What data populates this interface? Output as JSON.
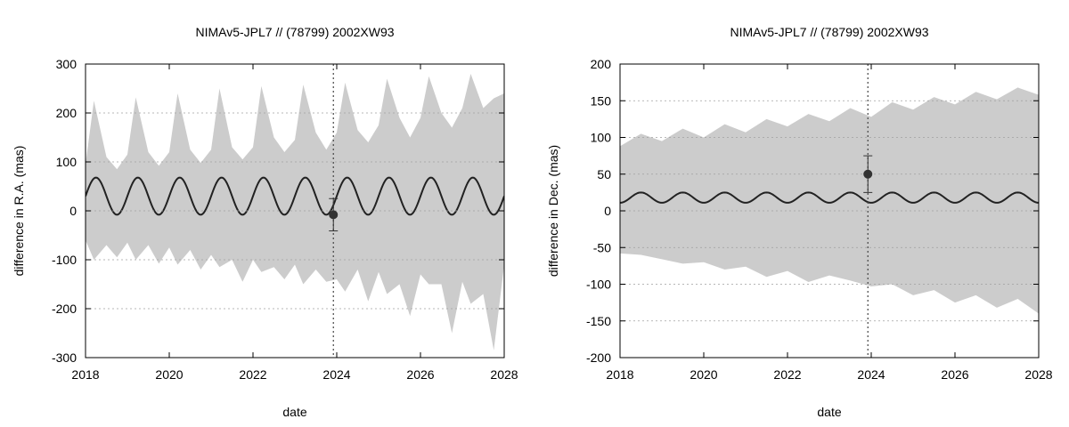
{
  "chart_data": [
    {
      "type": "line",
      "title": "NIMAv5-JPL7 // (78799) 2002XW93",
      "xlabel": "date",
      "ylabel": "difference in R.A. (mas)",
      "xlim": [
        2018,
        2028
      ],
      "ylim": [
        -300,
        300
      ],
      "xticks": [
        "2018",
        "2020",
        "2022",
        "2024",
        "2026",
        "2028"
      ],
      "yticks": [
        "-300",
        "-200",
        "-100",
        "0",
        "100",
        "200",
        "300"
      ],
      "grid": true,
      "series": [
        {
          "kind": "band",
          "color": "#cccccc",
          "x": [
            2018.0,
            2018.2,
            2018.5,
            2018.75,
            2019.0,
            2019.2,
            2019.5,
            2019.75,
            2020.0,
            2020.2,
            2020.5,
            2020.75,
            2021.0,
            2021.2,
            2021.5,
            2021.75,
            2022.0,
            2022.2,
            2022.5,
            2022.75,
            2023.0,
            2023.2,
            2023.5,
            2023.75,
            2024.0,
            2024.2,
            2024.5,
            2024.75,
            2025.0,
            2025.2,
            2025.5,
            2025.75,
            2026.0,
            2026.2,
            2026.5,
            2026.75,
            2027.0,
            2027.2,
            2027.5,
            2027.75,
            2028.0
          ],
          "upper": [
            95,
            225,
            110,
            85,
            115,
            232,
            120,
            92,
            120,
            240,
            125,
            98,
            125,
            250,
            130,
            105,
            130,
            255,
            150,
            120,
            145,
            258,
            160,
            125,
            160,
            262,
            165,
            140,
            175,
            270,
            190,
            150,
            190,
            275,
            200,
            170,
            210,
            280,
            210,
            230,
            240
          ],
          "lower": [
            -60,
            -100,
            -70,
            -95,
            -65,
            -100,
            -70,
            -108,
            -75,
            -110,
            -80,
            -120,
            -90,
            -115,
            -100,
            -145,
            -100,
            -125,
            -115,
            -140,
            -110,
            -150,
            -120,
            -145,
            -140,
            -165,
            -120,
            -185,
            -125,
            -170,
            -150,
            -215,
            -130,
            -150,
            -150,
            -250,
            -145,
            -190,
            -170,
            -285,
            -110
          ]
        },
        {
          "kind": "line",
          "color": "#222222",
          "model": "sinusoid",
          "amplitude": 38,
          "offset": 30,
          "period": 1.0,
          "phase_peak": 2018.25
        },
        {
          "kind": "point",
          "color": "#333333",
          "x": 2023.92,
          "y": -8,
          "yerr": 33
        }
      ],
      "vline": 2023.92
    },
    {
      "type": "line",
      "title": "NIMAv5-JPL7 // (78799) 2002XW93",
      "xlabel": "date",
      "ylabel": "difference in Dec. (mas)",
      "xlim": [
        2018,
        2028
      ],
      "ylim": [
        -200,
        200
      ],
      "xticks": [
        "2018",
        "2020",
        "2022",
        "2024",
        "2026",
        "2028"
      ],
      "yticks": [
        "-200",
        "-150",
        "-100",
        "-50",
        "0",
        "50",
        "100",
        "150",
        "200"
      ],
      "grid": true,
      "series": [
        {
          "kind": "band",
          "color": "#cccccc",
          "x": [
            2018.0,
            2018.5,
            2019.0,
            2019.5,
            2020.0,
            2020.5,
            2021.0,
            2021.5,
            2022.0,
            2022.5,
            2023.0,
            2023.5,
            2024.0,
            2024.5,
            2025.0,
            2025.5,
            2026.0,
            2026.5,
            2027.0,
            2027.5,
            2028.0
          ],
          "upper": [
            88,
            105,
            95,
            112,
            100,
            118,
            107,
            125,
            115,
            132,
            122,
            140,
            128,
            148,
            138,
            155,
            145,
            162,
            152,
            168,
            158
          ],
          "lower": [
            -58,
            -60,
            -66,
            -72,
            -70,
            -80,
            -76,
            -90,
            -82,
            -97,
            -88,
            -95,
            -103,
            -100,
            -115,
            -108,
            -125,
            -115,
            -132,
            -120,
            -140
          ]
        },
        {
          "kind": "line",
          "color": "#222222",
          "model": "sinusoid",
          "amplitude": 7,
          "offset": 18,
          "period": 1.0,
          "phase_peak": 2018.5
        },
        {
          "kind": "point",
          "color": "#333333",
          "x": 2023.92,
          "y": 50,
          "yerr": 25
        }
      ],
      "vline": 2023.92
    }
  ]
}
